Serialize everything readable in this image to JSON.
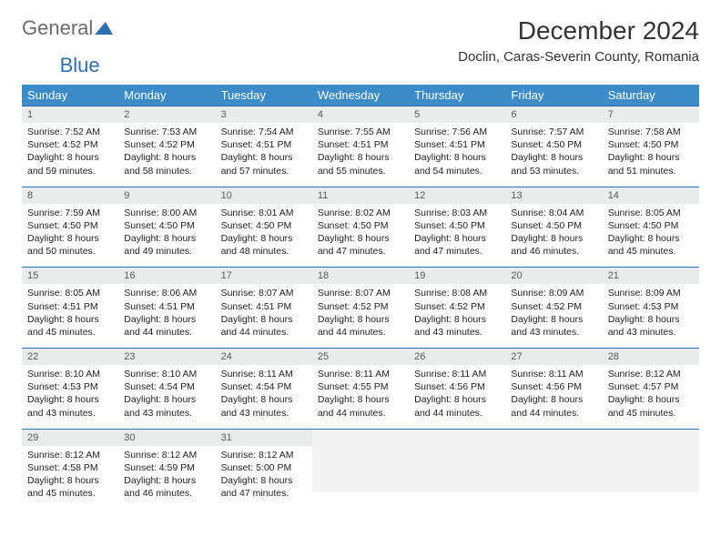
{
  "brand": {
    "part1": "General",
    "part2": "Blue"
  },
  "title": "December 2024",
  "location": "Doclin, Caras-Severin County, Romania",
  "day_headers": [
    "Sunday",
    "Monday",
    "Tuesday",
    "Wednesday",
    "Thursday",
    "Friday",
    "Saturday"
  ],
  "colors": {
    "header_bg": "#3b8bc9",
    "header_fg": "#ffffff",
    "rule": "#2f6fb0",
    "daynum_bg": "#e9eceb",
    "logo_accent": "#2f6fb0"
  },
  "weeks": [
    [
      {
        "n": "1",
        "sr": "7:52 AM",
        "ss": "4:52 PM",
        "dl": "8 hours and 59 minutes."
      },
      {
        "n": "2",
        "sr": "7:53 AM",
        "ss": "4:52 PM",
        "dl": "8 hours and 58 minutes."
      },
      {
        "n": "3",
        "sr": "7:54 AM",
        "ss": "4:51 PM",
        "dl": "8 hours and 57 minutes."
      },
      {
        "n": "4",
        "sr": "7:55 AM",
        "ss": "4:51 PM",
        "dl": "8 hours and 55 minutes."
      },
      {
        "n": "5",
        "sr": "7:56 AM",
        "ss": "4:51 PM",
        "dl": "8 hours and 54 minutes."
      },
      {
        "n": "6",
        "sr": "7:57 AM",
        "ss": "4:50 PM",
        "dl": "8 hours and 53 minutes."
      },
      {
        "n": "7",
        "sr": "7:58 AM",
        "ss": "4:50 PM",
        "dl": "8 hours and 51 minutes."
      }
    ],
    [
      {
        "n": "8",
        "sr": "7:59 AM",
        "ss": "4:50 PM",
        "dl": "8 hours and 50 minutes."
      },
      {
        "n": "9",
        "sr": "8:00 AM",
        "ss": "4:50 PM",
        "dl": "8 hours and 49 minutes."
      },
      {
        "n": "10",
        "sr": "8:01 AM",
        "ss": "4:50 PM",
        "dl": "8 hours and 48 minutes."
      },
      {
        "n": "11",
        "sr": "8:02 AM",
        "ss": "4:50 PM",
        "dl": "8 hours and 47 minutes."
      },
      {
        "n": "12",
        "sr": "8:03 AM",
        "ss": "4:50 PM",
        "dl": "8 hours and 47 minutes."
      },
      {
        "n": "13",
        "sr": "8:04 AM",
        "ss": "4:50 PM",
        "dl": "8 hours and 46 minutes."
      },
      {
        "n": "14",
        "sr": "8:05 AM",
        "ss": "4:50 PM",
        "dl": "8 hours and 45 minutes."
      }
    ],
    [
      {
        "n": "15",
        "sr": "8:05 AM",
        "ss": "4:51 PM",
        "dl": "8 hours and 45 minutes."
      },
      {
        "n": "16",
        "sr": "8:06 AM",
        "ss": "4:51 PM",
        "dl": "8 hours and 44 minutes."
      },
      {
        "n": "17",
        "sr": "8:07 AM",
        "ss": "4:51 PM",
        "dl": "8 hours and 44 minutes."
      },
      {
        "n": "18",
        "sr": "8:07 AM",
        "ss": "4:52 PM",
        "dl": "8 hours and 44 minutes."
      },
      {
        "n": "19",
        "sr": "8:08 AM",
        "ss": "4:52 PM",
        "dl": "8 hours and 43 minutes."
      },
      {
        "n": "20",
        "sr": "8:09 AM",
        "ss": "4:52 PM",
        "dl": "8 hours and 43 minutes."
      },
      {
        "n": "21",
        "sr": "8:09 AM",
        "ss": "4:53 PM",
        "dl": "8 hours and 43 minutes."
      }
    ],
    [
      {
        "n": "22",
        "sr": "8:10 AM",
        "ss": "4:53 PM",
        "dl": "8 hours and 43 minutes."
      },
      {
        "n": "23",
        "sr": "8:10 AM",
        "ss": "4:54 PM",
        "dl": "8 hours and 43 minutes."
      },
      {
        "n": "24",
        "sr": "8:11 AM",
        "ss": "4:54 PM",
        "dl": "8 hours and 43 minutes."
      },
      {
        "n": "25",
        "sr": "8:11 AM",
        "ss": "4:55 PM",
        "dl": "8 hours and 44 minutes."
      },
      {
        "n": "26",
        "sr": "8:11 AM",
        "ss": "4:56 PM",
        "dl": "8 hours and 44 minutes."
      },
      {
        "n": "27",
        "sr": "8:11 AM",
        "ss": "4:56 PM",
        "dl": "8 hours and 44 minutes."
      },
      {
        "n": "28",
        "sr": "8:12 AM",
        "ss": "4:57 PM",
        "dl": "8 hours and 45 minutes."
      }
    ],
    [
      {
        "n": "29",
        "sr": "8:12 AM",
        "ss": "4:58 PM",
        "dl": "8 hours and 45 minutes."
      },
      {
        "n": "30",
        "sr": "8:12 AM",
        "ss": "4:59 PM",
        "dl": "8 hours and 46 minutes."
      },
      {
        "n": "31",
        "sr": "8:12 AM",
        "ss": "5:00 PM",
        "dl": "8 hours and 47 minutes."
      },
      null,
      null,
      null,
      null
    ]
  ],
  "labels": {
    "sunrise": "Sunrise:",
    "sunset": "Sunset:",
    "daylight": "Daylight:"
  }
}
